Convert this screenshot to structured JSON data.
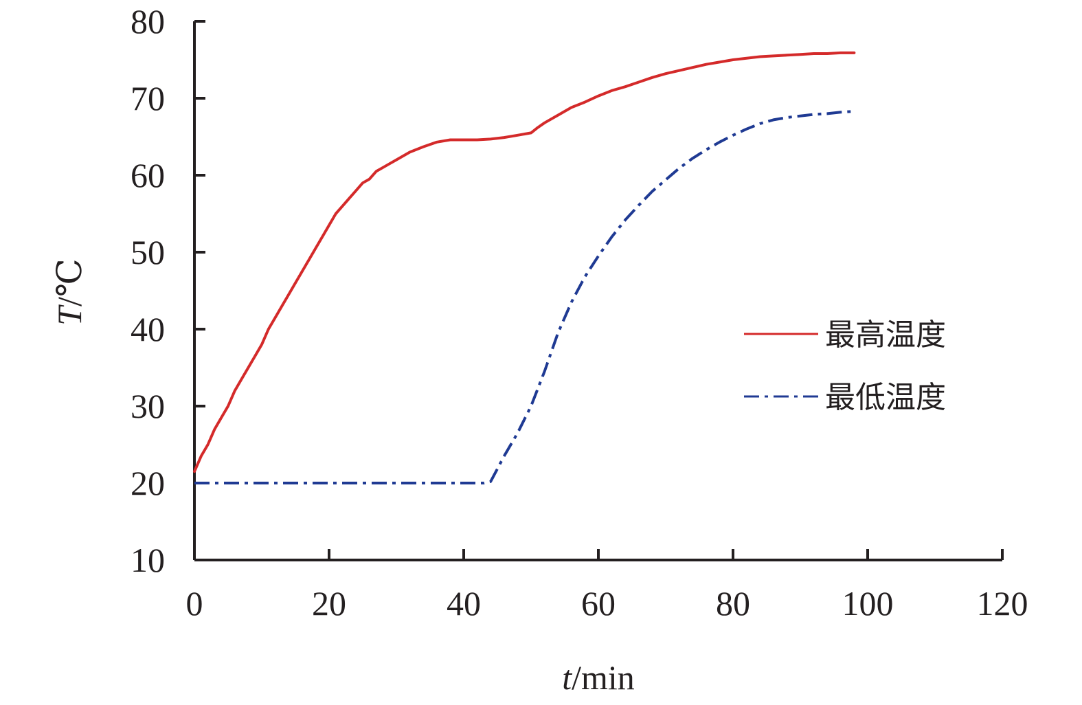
{
  "chart_data": {
    "type": "line",
    "xlabel_italic": "t",
    "xlabel_rest": "/min",
    "ylabel_italic": "T",
    "ylabel_rest": "/℃",
    "xlim": [
      0,
      120
    ],
    "ylim": [
      10,
      80
    ],
    "xticks": [
      0,
      20,
      40,
      60,
      80,
      100,
      120
    ],
    "yticks": [
      10,
      20,
      30,
      40,
      50,
      60,
      70,
      80
    ],
    "grid": false,
    "legend_position": "right",
    "series": [
      {
        "name": "最高温度",
        "color": "#d42a2a",
        "style": "solid",
        "x": [
          0,
          1,
          2,
          3,
          4,
          5,
          6,
          7,
          8,
          9,
          10,
          11,
          12,
          13,
          14,
          15,
          16,
          17,
          18,
          19,
          20,
          21,
          22,
          23,
          24,
          25,
          26,
          27,
          28,
          29,
          30,
          32,
          34,
          36,
          38,
          40,
          42,
          44,
          46,
          48,
          50,
          51,
          52,
          54,
          56,
          58,
          60,
          62,
          64,
          66,
          68,
          70,
          72,
          74,
          76,
          78,
          80,
          82,
          84,
          86,
          88,
          90,
          92,
          94,
          96,
          98
        ],
        "y": [
          21.5,
          23.5,
          25,
          27,
          28.5,
          30,
          32,
          33.5,
          35,
          36.5,
          38,
          40,
          41.5,
          43,
          44.5,
          46,
          47.5,
          49,
          50.5,
          52,
          53.5,
          55,
          56,
          57,
          58,
          59,
          59.5,
          60.5,
          61,
          61.5,
          62,
          63,
          63.7,
          64.3,
          64.6,
          64.6,
          64.6,
          64.7,
          64.9,
          65.2,
          65.5,
          66.2,
          66.8,
          67.8,
          68.8,
          69.5,
          70.3,
          71.0,
          71.5,
          72.1,
          72.7,
          73.2,
          73.6,
          74.0,
          74.4,
          74.7,
          75.0,
          75.2,
          75.4,
          75.5,
          75.6,
          75.7,
          75.8,
          75.8,
          75.9,
          75.9
        ]
      },
      {
        "name": "最低温度",
        "color": "#1f3a93",
        "style": "dashdot",
        "x": [
          0,
          5,
          10,
          15,
          20,
          25,
          30,
          35,
          40,
          43,
          44,
          46,
          48,
          50,
          52,
          54,
          56,
          58,
          60,
          62,
          64,
          66,
          68,
          70,
          72,
          74,
          76,
          78,
          80,
          82,
          84,
          86,
          88,
          90,
          92,
          94,
          96,
          98
        ],
        "y": [
          20,
          20,
          20,
          20,
          20,
          20,
          20,
          20,
          20,
          20,
          20.2,
          23.5,
          26.5,
          30,
          34.5,
          39.5,
          43.5,
          46.8,
          49.5,
          52,
          54.2,
          56.1,
          57.9,
          59.4,
          60.9,
          62.2,
          63.3,
          64.3,
          65.2,
          66.0,
          66.7,
          67.2,
          67.5,
          67.7,
          67.9,
          68.0,
          68.2,
          68.3
        ]
      }
    ]
  }
}
